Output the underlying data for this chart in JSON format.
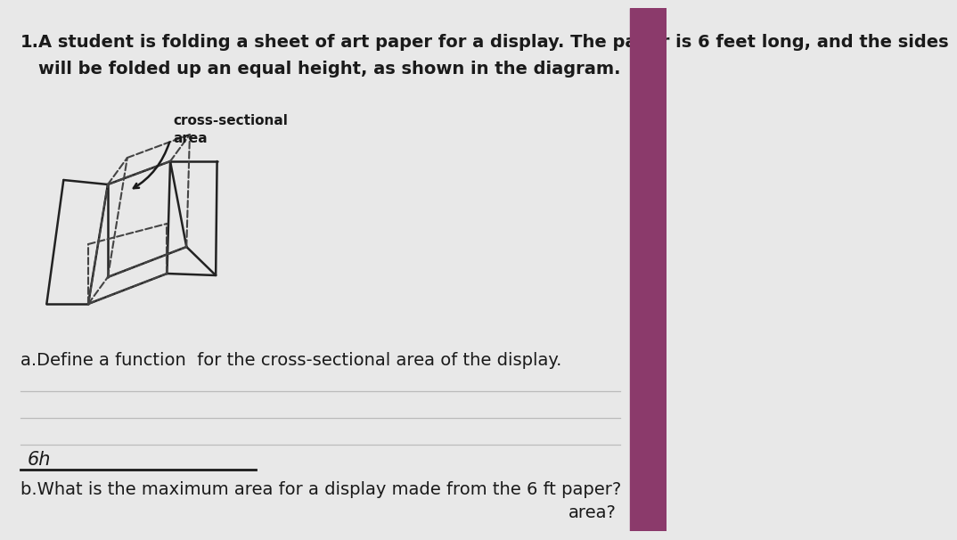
{
  "bg_color": "#e8e8e8",
  "text_color": "#1a1a1a",
  "number": "1.",
  "main_text_line1": "A student is folding a sheet of art paper for a display. The paper is 6 feet long, and the sides",
  "main_text_line2": "will be folded up an equal height, as shown in the diagram.",
  "label_cross": "cross-sectional",
  "label_area": "area",
  "question_a": "a.Define a function  for the cross-sectional area of the display.",
  "answer_b_text": "6h",
  "question_b": "b.What is the maximum area for a display made from the 6 ft paper?",
  "right_bar_color": "#8b3a6b",
  "title_fontsize": 14,
  "diagram_line_color": "#222222",
  "diagram_dash_color": "#444444"
}
